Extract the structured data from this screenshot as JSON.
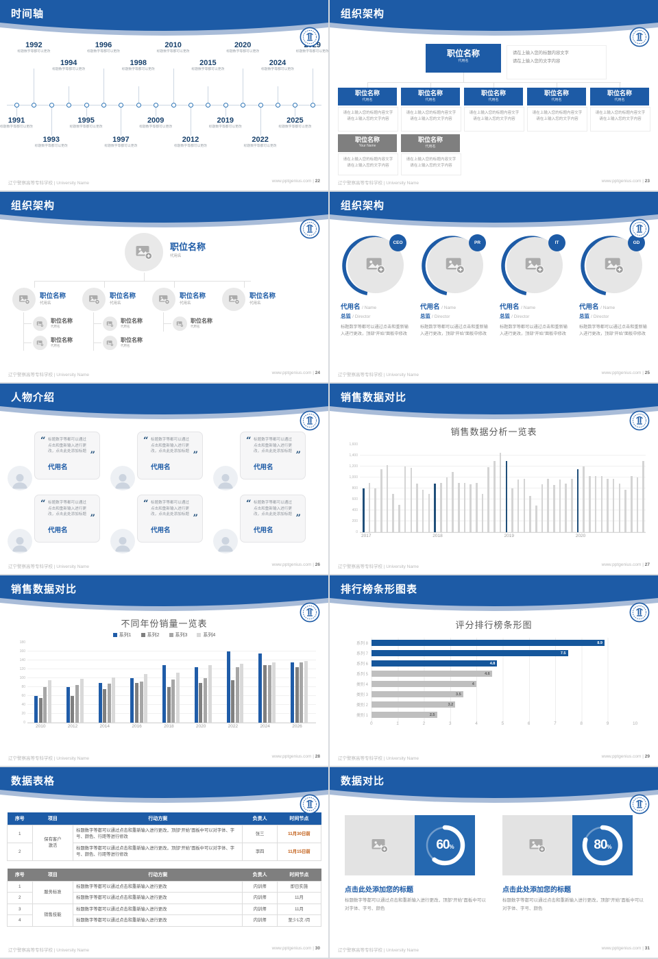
{
  "footer": {
    "org": "辽宁警察高等专科学校 | University Name",
    "site": "www.pptgenius.com"
  },
  "slides": {
    "timeline": {
      "title": "时间轴",
      "page": "22"
    },
    "org1": {
      "title": "组织架构",
      "page": "23"
    },
    "org2": {
      "title": "组织架构",
      "page": "24"
    },
    "org3": {
      "title": "组织架构",
      "page": "25"
    },
    "people": {
      "title": "人物介绍",
      "page": "26"
    },
    "chart1": {
      "title": "销售数据对比",
      "page": "27"
    },
    "chart2": {
      "title": "销售数据对比",
      "page": "28"
    },
    "chart3": {
      "title": "排行榜条形图表",
      "page": "29"
    },
    "tables": {
      "title": "数据表格",
      "page": "30"
    },
    "compare": {
      "title": "数据对比",
      "page": "31"
    }
  },
  "timeline": {
    "caption": "标题数字等都可以更改",
    "top_years": [
      "1992",
      "1994",
      "1996",
      "1998",
      "2010",
      "2015",
      "2020",
      "2024",
      "2029"
    ],
    "bottom_years": [
      "1991",
      "1993",
      "1995",
      "1997",
      "2009",
      "2012",
      "2019",
      "2022",
      "2025"
    ]
  },
  "org1": {
    "root": {
      "title": "职位名称",
      "sub": "代用名"
    },
    "note_line1": "请在上输入您的标题内容文字",
    "note_line2": "请在上输入您的文字内容",
    "children": [
      {
        "title": "职位名称",
        "sub": "代用名"
      },
      {
        "title": "职位名称",
        "sub": "代用名"
      },
      {
        "title": "职位名称",
        "sub": "代用名"
      },
      {
        "title": "职位名称",
        "sub": "代用名"
      },
      {
        "title": "职位名称",
        "sub": "代用名"
      }
    ],
    "extra": [
      {
        "title": "职位名称",
        "sub": "Your Name"
      },
      {
        "title": "职位名称",
        "sub": "代用名"
      }
    ],
    "desc_line1": "请在上输入您的标题内容文字",
    "desc_line2": "请在上输入您的文字内容"
  },
  "org2": {
    "root": {
      "title": "职位名称",
      "sub": "代用名"
    },
    "children": [
      {
        "title": "职位名称",
        "sub": "代用名"
      },
      {
        "title": "职位名称",
        "sub": "代用名"
      },
      {
        "title": "职位名称",
        "sub": "代用名"
      },
      {
        "title": "职位名称",
        "sub": "代用名"
      }
    ],
    "sub_counts": [
      2,
      2,
      1,
      0
    ],
    "sub_item": {
      "title": "职位名称",
      "sub": "代用名"
    }
  },
  "org3": {
    "badges": [
      "CEO",
      "PR",
      "IT",
      "GD"
    ],
    "name": "代用名",
    "name_en": "/ Name",
    "role": "总监",
    "role_en": "/  Director",
    "desc": "标题数字等都可以通过点击和重新输入进行更改，顶部“开始”面板中修改"
  },
  "people": {
    "quote": "标题数字等都可以通过点击和重新输入进行更改，点击此处添加标题",
    "name": "代用名",
    "count": 6
  },
  "chart_data": [
    {
      "type": "bar",
      "title": "销售数据分析一览表",
      "x_groups": [
        "2017",
        "2018",
        "2019",
        "2020"
      ],
      "values": [
        800,
        900,
        800,
        1150,
        1220,
        700,
        500,
        1200,
        1180,
        890,
        780,
        700,
        890,
        900,
        1000,
        1100,
        900,
        900,
        880,
        900,
        700,
        1190,
        1300,
        1450,
        1300,
        800,
        960,
        970,
        660,
        490,
        870,
        980,
        860,
        960,
        890,
        980,
        1150,
        1200,
        1020,
        1030,
        1020,
        980,
        970,
        890,
        780,
        1020,
        1000,
        1300
      ],
      "highlight_every": 12,
      "bar_color": "#d4d4d4",
      "highlight_color": "#1f4e79",
      "ylim": [
        0,
        1600
      ],
      "yticks": [
        "0",
        "200",
        "400",
        "600",
        "800",
        "1,000",
        "1,200",
        "1,400",
        "1,600"
      ],
      "grid": true,
      "legend": "none"
    },
    {
      "type": "bar",
      "title": "不同年份销量一览表",
      "categories": [
        "2010",
        "2012",
        "2014",
        "2016",
        "2018",
        "2020",
        "2022",
        "2024",
        "2026"
      ],
      "series": [
        {
          "name": "系列1",
          "color": "#1f5ca8",
          "values": [
            60,
            80,
            90,
            100,
            130,
            125,
            160,
            155,
            135
          ]
        },
        {
          "name": "系列2",
          "color": "#7f7f7f",
          "values": [
            55,
            60,
            75,
            90,
            80,
            90,
            95,
            130,
            125
          ]
        },
        {
          "name": "系列3",
          "color": "#a6a6a6",
          "values": [
            80,
            85,
            88,
            92,
            97,
            100,
            125,
            130,
            135
          ]
        },
        {
          "name": "系列4",
          "color": "#d9d9d9",
          "values": [
            95,
            98,
            102,
            110,
            112,
            130,
            133,
            135,
            138
          ]
        }
      ],
      "ylim": [
        0,
        180
      ],
      "yticks": [
        "0",
        "20",
        "40",
        "60",
        "80",
        "100",
        "120",
        "140",
        "160",
        "180"
      ],
      "grid": true,
      "legend": "top"
    },
    {
      "type": "bar-horizontal",
      "title": "评分排行榜条形图",
      "categories": [
        "系列 8",
        "系列 7",
        "系列 6",
        "系列 5",
        "类别 4",
        "类别 3",
        "类别 2",
        "类别 1"
      ],
      "values": [
        8.9,
        7.5,
        4.8,
        4.6,
        4,
        3.5,
        3.2,
        2.5
      ],
      "colors": [
        "#15569b",
        "#15569b",
        "#15569b",
        "#bfbfbf",
        "#bfbfbf",
        "#bfbfbf",
        "#bfbfbf",
        "#bfbfbf"
      ],
      "xlim": [
        0,
        10
      ],
      "xticks": [
        "0",
        "1",
        "2",
        "3",
        "4",
        "5",
        "6",
        "7",
        "8",
        "9",
        "10"
      ],
      "grid": true,
      "legend": "none"
    },
    {
      "type": "pie",
      "title": "数据对比 donuts",
      "values": [
        60,
        80
      ],
      "labels": [
        "60%",
        "80%"
      ]
    }
  ],
  "tables": {
    "headers": [
      "序号",
      "项目",
      "行动方案",
      "负责人",
      "时间节点"
    ],
    "table1_rows": [
      {
        "no": "1",
        "project": "保有客户\n激活",
        "plan": "标题数字等都可以通过点击和重新输入进行更改，顶部“开始”面板中可以对字体、字号、颜色、行距等进行修改",
        "owner": "张三",
        "time": "11月30日前"
      },
      {
        "no": "2",
        "project": "",
        "plan": "标题数字等都可以通过点击和重新输入进行更改，顶部“开始”面板中可以对字体、字号、颜色、行距等进行修改",
        "owner": "李四",
        "time": "11月15日前"
      }
    ],
    "table2_rows": [
      {
        "no": "1",
        "project": "服务标准",
        "plan": "标题数字等都可以通过点击和重新输入进行更改",
        "owner": "内训师",
        "time": "即日实施"
      },
      {
        "no": "2",
        "project": "",
        "plan": "标题数字等都可以通过点击和重新输入进行更改",
        "owner": "内训师",
        "time": "11月"
      },
      {
        "no": "3",
        "project": "销售技能",
        "plan": "标题数字等都可以通过点击和重新输入进行更改",
        "owner": "内训师",
        "time": "11月"
      },
      {
        "no": "4",
        "project": "",
        "plan": "标题数字等都可以通过点击和重新输入进行更改",
        "owner": "内训师",
        "time": "至少1次 /月"
      }
    ]
  },
  "compare": {
    "heading": "点击此处添加您的标题",
    "body": "标题数字等都可以通过点击和重新输入进行更改，顶部“开始”面板中可以对字体、字号、颜色",
    "panels": [
      {
        "pct": "60"
      },
      {
        "pct": "80"
      }
    ]
  },
  "colors": {
    "header_blue": "#1d5ba6",
    "header_light": "#a9bcd8",
    "navy": "#1f4e79"
  }
}
